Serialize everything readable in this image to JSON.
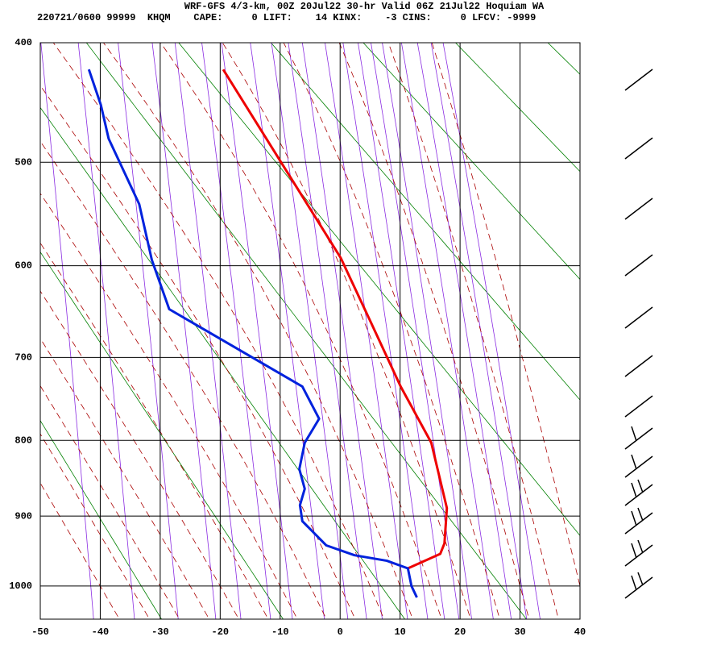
{
  "chart_data": {
    "type": "sounding",
    "title": "WRF-GFS 4/3-km, 00Z 20Jul22 30-hr Valid 06Z 21Jul22 Hoquiam WA",
    "subtitle": "220721/0600 99999  KHQM    CAPE:     0 LIFT:    14 KINX:    -3 CINS:     0 LFCV: -9999",
    "xlim": [
      -50,
      40
    ],
    "xticks": [
      -50,
      -40,
      -30,
      -20,
      -10,
      0,
      10,
      20,
      30,
      40
    ],
    "ylim": [
      1050,
      400
    ],
    "yticks": [
      400,
      500,
      600,
      700,
      800,
      900,
      1000
    ],
    "y_scale": "exner",
    "grid": true,
    "series": [
      {
        "color": "#ee0000",
        "x": [
          -19.5,
          0.1,
          5.1,
          10.1,
          15.2,
          17.8,
          17.4,
          16.7,
          11.3
        ],
        "y": [
          421,
          592,
          660,
          734,
          803,
          889,
          938,
          953,
          974
        ]
      },
      {
        "color": "#0022dd",
        "x": [
          -41.9,
          -39.9,
          -38.6,
          -33.5,
          -31.4,
          -28.5,
          -6.3,
          -3.5,
          -5.9,
          -6.8,
          -5.9,
          -6.7,
          -6.3,
          -2.3,
          2.4,
          7.8,
          11.3,
          11.9,
          12.8
        ],
        "y": [
          421,
          450,
          479,
          539,
          594,
          646,
          734,
          773,
          803,
          837,
          863,
          885,
          907,
          941,
          955,
          963,
          974,
          1000,
          1017
        ]
      }
    ]
  }
}
